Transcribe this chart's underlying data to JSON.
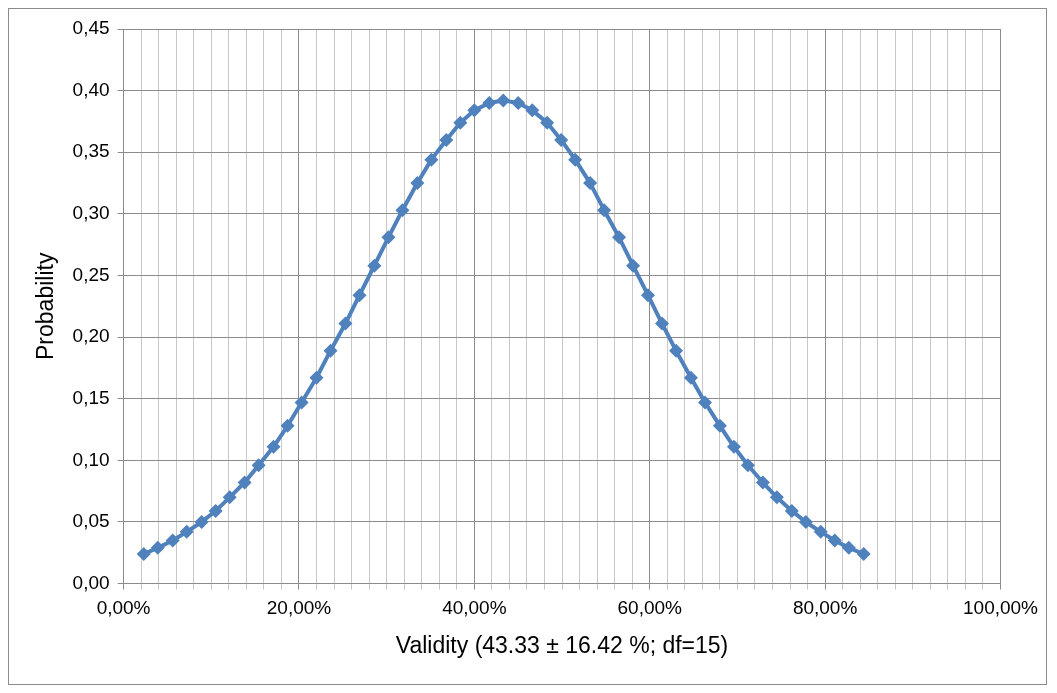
{
  "chart_data": {
    "type": "line",
    "xlabel": "Validity (43.33 ± 16.42 %; df=15)",
    "ylabel": "Probability",
    "series": [
      {
        "color": "#4f81bd",
        "x": [
          2.3,
          3.9,
          5.6,
          7.2,
          8.9,
          10.5,
          12.1,
          13.8,
          15.4,
          17.1,
          18.7,
          20.3,
          22.0,
          23.6,
          25.3,
          26.9,
          28.6,
          30.2,
          31.8,
          33.5,
          35.1,
          36.8,
          38.4,
          40.0,
          41.7,
          43.3,
          45.0,
          46.6,
          48.3,
          49.9,
          51.5,
          53.2,
          54.8,
          56.5,
          58.1,
          59.8,
          61.4,
          63.0,
          64.7,
          66.3,
          68.0,
          69.6,
          71.2,
          72.9,
          74.5,
          76.2,
          77.8,
          79.5,
          81.1,
          82.7,
          84.4
        ],
        "values": [
          0.024,
          0.029,
          0.035,
          0.042,
          0.05,
          0.059,
          0.07,
          0.082,
          0.096,
          0.111,
          0.128,
          0.147,
          0.167,
          0.189,
          0.211,
          0.234,
          0.258,
          0.281,
          0.303,
          0.325,
          0.344,
          0.36,
          0.374,
          0.384,
          0.39,
          0.392,
          0.39,
          0.384,
          0.374,
          0.36,
          0.344,
          0.325,
          0.303,
          0.281,
          0.258,
          0.234,
          0.211,
          0.189,
          0.167,
          0.147,
          0.128,
          0.111,
          0.096,
          0.082,
          0.07,
          0.059,
          0.05,
          0.042,
          0.035,
          0.029,
          0.024
        ]
      }
    ],
    "xlim": [
      0,
      100
    ],
    "xticks": [
      {
        "value": 0,
        "label": "0,00%"
      },
      {
        "value": 2,
        "label": null
      },
      {
        "value": 4,
        "label": null
      },
      {
        "value": 6,
        "label": null
      },
      {
        "value": 8,
        "label": null
      },
      {
        "value": 10,
        "label": null
      },
      {
        "value": 12,
        "label": null
      },
      {
        "value": 14,
        "label": null
      },
      {
        "value": 16,
        "label": null
      },
      {
        "value": 18,
        "label": null
      },
      {
        "value": 20,
        "label": "20,00%"
      },
      {
        "value": 22,
        "label": null
      },
      {
        "value": 24,
        "label": null
      },
      {
        "value": 26,
        "label": null
      },
      {
        "value": 28,
        "label": null
      },
      {
        "value": 30,
        "label": null
      },
      {
        "value": 32,
        "label": null
      },
      {
        "value": 34,
        "label": null
      },
      {
        "value": 36,
        "label": null
      },
      {
        "value": 38,
        "label": null
      },
      {
        "value": 40,
        "label": "40,00%"
      },
      {
        "value": 42,
        "label": null
      },
      {
        "value": 44,
        "label": null
      },
      {
        "value": 46,
        "label": null
      },
      {
        "value": 48,
        "label": null
      },
      {
        "value": 50,
        "label": null
      },
      {
        "value": 52,
        "label": null
      },
      {
        "value": 54,
        "label": null
      },
      {
        "value": 56,
        "label": null
      },
      {
        "value": 58,
        "label": null
      },
      {
        "value": 60,
        "label": "60,00%"
      },
      {
        "value": 62,
        "label": null
      },
      {
        "value": 64,
        "label": null
      },
      {
        "value": 66,
        "label": null
      },
      {
        "value": 68,
        "label": null
      },
      {
        "value": 70,
        "label": null
      },
      {
        "value": 72,
        "label": null
      },
      {
        "value": 74,
        "label": null
      },
      {
        "value": 76,
        "label": null
      },
      {
        "value": 78,
        "label": null
      },
      {
        "value": 80,
        "label": "80,00%"
      },
      {
        "value": 82,
        "label": null
      },
      {
        "value": 84,
        "label": null
      },
      {
        "value": 86,
        "label": null
      },
      {
        "value": 88,
        "label": null
      },
      {
        "value": 90,
        "label": null
      },
      {
        "value": 92,
        "label": null
      },
      {
        "value": 94,
        "label": null
      },
      {
        "value": 96,
        "label": null
      },
      {
        "value": 98,
        "label": null
      },
      {
        "value": 100,
        "label": "100,00%"
      }
    ],
    "ylim": [
      0,
      0.45
    ],
    "yticks": [
      {
        "value": 0,
        "label": "0,00"
      },
      {
        "value": 0.05,
        "label": "0,05"
      },
      {
        "value": 0.1,
        "label": "0,10"
      },
      {
        "value": 0.15,
        "label": "0,15"
      },
      {
        "value": 0.2,
        "label": "0,20"
      },
      {
        "value": 0.25,
        "label": "0,25"
      },
      {
        "value": 0.3,
        "label": "0,30"
      },
      {
        "value": 0.35,
        "label": "0,35"
      },
      {
        "value": 0.4,
        "label": "0,40"
      },
      {
        "value": 0.45,
        "label": "0,45"
      }
    ],
    "grid": true,
    "legend": false,
    "marker": "diamond",
    "line_style": "solid"
  }
}
